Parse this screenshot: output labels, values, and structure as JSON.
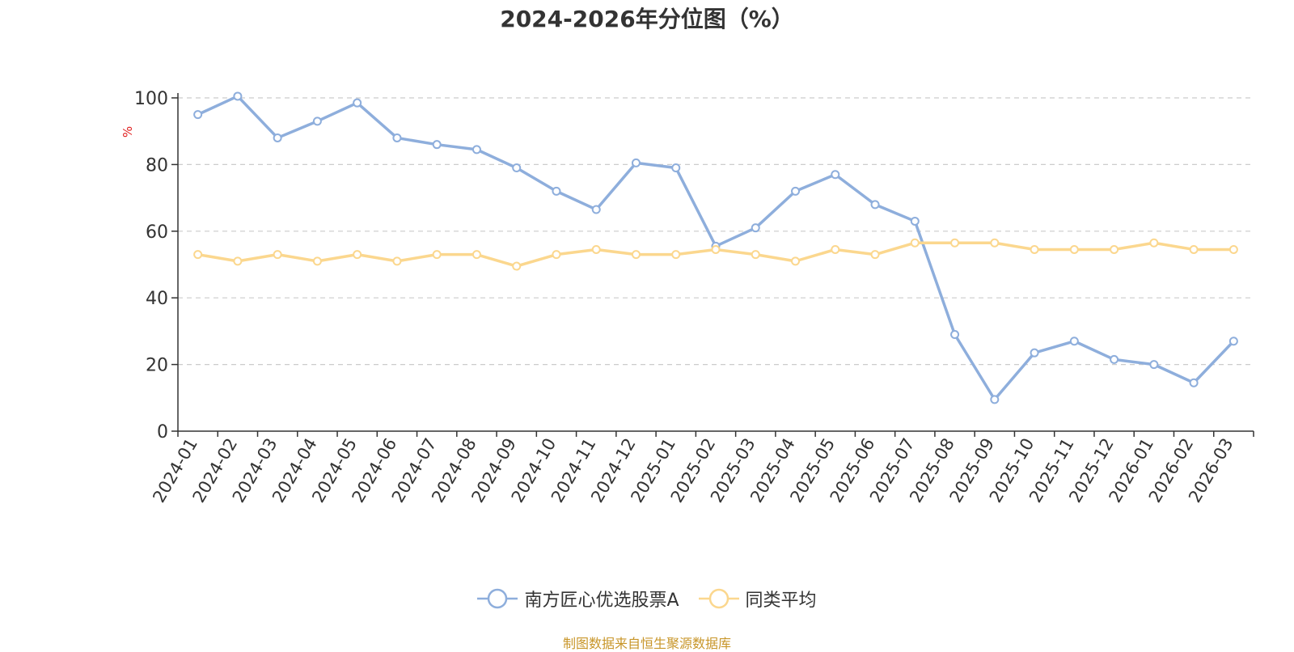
{
  "title": "2024-2026年分位图（%）",
  "source_text": "制图数据来自恒生聚源数据库",
  "chart_data": {
    "type": "line",
    "title": "2024-2026年分位图（%）",
    "ylabel": "%",
    "xlabel": "",
    "ylim": [
      0,
      100
    ],
    "yticks": [
      0,
      20,
      40,
      60,
      80,
      100
    ],
    "grid": true,
    "legend_position": "bottom-center",
    "categories": [
      "2024-01",
      "2024-02",
      "2024-03",
      "2024-04",
      "2024-05",
      "2024-06",
      "2024-07",
      "2024-08",
      "2024-09",
      "2024-10",
      "2024-11",
      "2024-12",
      "2025-01",
      "2025-02",
      "2025-03",
      "2025-04",
      "2025-05",
      "2025-06",
      "2025-07",
      "2025-08",
      "2025-09",
      "2025-10",
      "2025-11",
      "2025-12",
      "2026-01",
      "2026-02",
      "2026-03"
    ],
    "series": [
      {
        "name": "南方匠心优选股票A",
        "color": "#8eaedc",
        "values": [
          95,
          100.5,
          88,
          93,
          98.5,
          88,
          86,
          84.5,
          79,
          72,
          66.5,
          80.5,
          79,
          55.5,
          61,
          72,
          77,
          68,
          63,
          29,
          9.5,
          23.5,
          27,
          21.5,
          20,
          14.5,
          27
        ]
      },
      {
        "name": "同类平均",
        "color": "#fbd78e",
        "values": [
          53,
          51,
          53,
          51,
          53,
          51,
          53,
          53,
          49.5,
          53,
          54.5,
          53,
          53,
          54.5,
          53,
          51,
          54.5,
          53,
          56.5,
          56.5,
          56.5,
          54.5,
          54.5,
          54.5,
          56.5,
          54.5,
          54.5
        ]
      }
    ]
  }
}
